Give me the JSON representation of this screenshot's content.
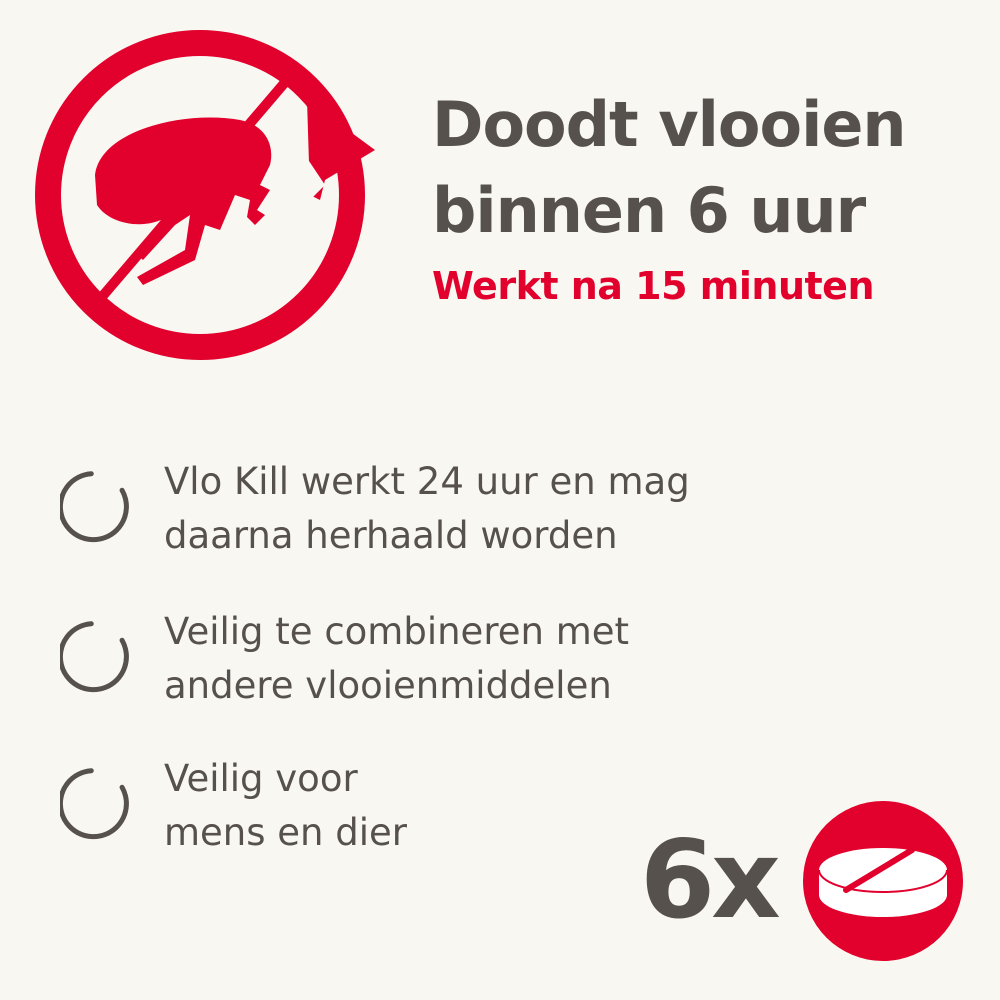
{
  "colors": {
    "accent": "#e2002c",
    "text": "#57514d",
    "background": "#f8f7f2"
  },
  "badge": {
    "icon": "no-flea-icon"
  },
  "headline": {
    "line1": "Doodt vlooien",
    "line2": "binnen 6 uur"
  },
  "subheadline": "Werkt na 15 minuten",
  "features": [
    {
      "icon": "circle-check-icon",
      "line1": "Vlo Kill werkt 24 uur en mag",
      "line2": "daarna herhaald worden"
    },
    {
      "icon": "circle-check-icon",
      "line1": "Veilig te combineren met",
      "line2": "andere vlooienmiddelen"
    },
    {
      "icon": "circle-check-icon",
      "line1": "Veilig voor",
      "line2": "mens en dier"
    }
  ],
  "package": {
    "count": "6x",
    "icon": "tablet-icon"
  }
}
